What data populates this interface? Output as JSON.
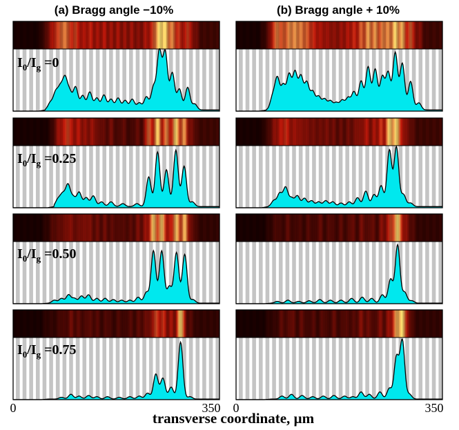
{
  "figure": {
    "column_titles": [
      "(a) Bragg angle −10%",
      "(b) Bragg angle + 10%"
    ],
    "xlabel": "transverse coordinate, µm",
    "x_ticks": [
      "0",
      "350",
      "0",
      "350"
    ],
    "row_labels": [
      {
        "main": "I",
        "sub0": "0",
        "mid": "/I",
        "sub1": "g",
        "value": " =0"
      },
      {
        "main": "I",
        "sub0": "0",
        "mid": "/I",
        "sub1": "g",
        "value": " =0.25"
      },
      {
        "main": "I",
        "sub0": "0",
        "mid": "/I",
        "sub1": "g",
        "value": " =0.50"
      },
      {
        "main": "I",
        "sub0": "0",
        "mid": "/I",
        "sub1": "g",
        "value": " =0.75"
      }
    ]
  },
  "colors": {
    "fill": "#00e8ee",
    "line": "#000000",
    "stripe_gray": "#c4c4c4",
    "stripe_white": "#ffffff",
    "heat_dark": "#1a0000",
    "heat_mid": "#c0180a",
    "heat_bright": "#ffe070"
  },
  "chart_data": {
    "type": "area",
    "x_unit": "µm",
    "xlim": [
      0,
      350
    ],
    "ylim": [
      0,
      1
    ],
    "stripe_count": 31,
    "panels": [
      {
        "column": "a",
        "ratio": "0",
        "baseline": 0.02,
        "onset": 55,
        "peaks": [
          [
            63,
            0.12
          ],
          [
            72,
            0.28
          ],
          [
            80,
            0.34
          ],
          [
            88,
            0.5
          ],
          [
            96,
            0.28
          ],
          [
            106,
            0.38
          ],
          [
            118,
            0.24
          ],
          [
            130,
            0.3
          ],
          [
            142,
            0.2
          ],
          [
            154,
            0.25
          ],
          [
            166,
            0.18
          ],
          [
            178,
            0.2
          ],
          [
            190,
            0.16
          ],
          [
            202,
            0.18
          ],
          [
            214,
            0.12
          ],
          [
            226,
            0.22
          ],
          [
            238,
            0.38
          ],
          [
            248,
            0.98
          ],
          [
            258,
            0.96
          ],
          [
            270,
            0.62
          ],
          [
            282,
            0.35
          ],
          [
            296,
            0.38
          ],
          [
            308,
            0.1
          ]
        ]
      },
      {
        "column": "a",
        "ratio": "0.25",
        "baseline": 0.02,
        "onset": 70,
        "peaks": [
          [
            76,
            0.12
          ],
          [
            84,
            0.2
          ],
          [
            93,
            0.36
          ],
          [
            102,
            0.15
          ],
          [
            112,
            0.24
          ],
          [
            124,
            0.15
          ],
          [
            136,
            0.18
          ],
          [
            150,
            0.08
          ],
          [
            166,
            0.08
          ],
          [
            186,
            0.05
          ],
          [
            210,
            0.05
          ],
          [
            230,
            0.5
          ],
          [
            245,
            0.92
          ],
          [
            260,
            0.62
          ],
          [
            276,
            0.95
          ],
          [
            290,
            0.68
          ],
          [
            304,
            0.08
          ]
        ]
      },
      {
        "column": "a",
        "ratio": "0.50",
        "baseline": 0.01,
        "onset": 60,
        "peaks": [
          [
            70,
            0.05
          ],
          [
            82,
            0.08
          ],
          [
            94,
            0.14
          ],
          [
            104,
            0.08
          ],
          [
            116,
            0.12
          ],
          [
            128,
            0.14
          ],
          [
            142,
            0.08
          ],
          [
            156,
            0.08
          ],
          [
            170,
            0.06
          ],
          [
            184,
            0.05
          ],
          [
            198,
            0.05
          ],
          [
            212,
            0.1
          ],
          [
            226,
            0.18
          ],
          [
            238,
            0.88
          ],
          [
            252,
            0.88
          ],
          [
            265,
            0.28
          ],
          [
            277,
            0.85
          ],
          [
            291,
            0.82
          ],
          [
            305,
            0.06
          ]
        ]
      },
      {
        "column": "a",
        "ratio": "0.75",
        "baseline": 0.01,
        "onset": 60,
        "peaks": [
          [
            82,
            0.03
          ],
          [
            98,
            0.08
          ],
          [
            112,
            0.05
          ],
          [
            128,
            0.06
          ],
          [
            142,
            0.04
          ],
          [
            160,
            0.04
          ],
          [
            180,
            0.03
          ],
          [
            198,
            0.04
          ],
          [
            214,
            0.05
          ],
          [
            228,
            0.1
          ],
          [
            242,
            0.42
          ],
          [
            254,
            0.35
          ],
          [
            268,
            0.2
          ],
          [
            284,
            0.96
          ],
          [
            300,
            0.04
          ]
        ]
      },
      {
        "column": "b",
        "ratio": "0",
        "baseline": 0.02,
        "onset": 52,
        "peaks": [
          [
            62,
            0.22
          ],
          [
            70,
            0.52
          ],
          [
            80,
            0.4
          ],
          [
            90,
            0.58
          ],
          [
            100,
            0.62
          ],
          [
            110,
            0.55
          ],
          [
            120,
            0.45
          ],
          [
            130,
            0.3
          ],
          [
            140,
            0.22
          ],
          [
            150,
            0.18
          ],
          [
            160,
            0.15
          ],
          [
            170,
            0.12
          ],
          [
            180,
            0.16
          ],
          [
            190,
            0.2
          ],
          [
            200,
            0.3
          ],
          [
            212,
            0.48
          ],
          [
            224,
            0.72
          ],
          [
            236,
            0.68
          ],
          [
            248,
            0.55
          ],
          [
            258,
            0.62
          ],
          [
            270,
            0.96
          ],
          [
            282,
            0.78
          ],
          [
            296,
            0.48
          ],
          [
            310,
            0.12
          ]
        ]
      },
      {
        "column": "b",
        "ratio": "0.25",
        "baseline": 0.02,
        "onset": 55,
        "peaks": [
          [
            64,
            0.1
          ],
          [
            74,
            0.22
          ],
          [
            84,
            0.32
          ],
          [
            94,
            0.14
          ],
          [
            104,
            0.18
          ],
          [
            116,
            0.14
          ],
          [
            128,
            0.1
          ],
          [
            140,
            0.08
          ],
          [
            152,
            0.1
          ],
          [
            164,
            0.08
          ],
          [
            178,
            0.06
          ],
          [
            192,
            0.08
          ],
          [
            206,
            0.15
          ],
          [
            220,
            0.26
          ],
          [
            234,
            0.2
          ],
          [
            246,
            0.35
          ],
          [
            260,
            0.95
          ],
          [
            272,
            1.0
          ],
          [
            284,
            0.2
          ],
          [
            296,
            0.06
          ]
        ]
      },
      {
        "column": "b",
        "ratio": "0.50",
        "baseline": 0.01,
        "onset": 60,
        "peaks": [
          [
            70,
            0.03
          ],
          [
            88,
            0.05
          ],
          [
            106,
            0.03
          ],
          [
            124,
            0.04
          ],
          [
            142,
            0.06
          ],
          [
            160,
            0.05
          ],
          [
            178,
            0.05
          ],
          [
            196,
            0.08
          ],
          [
            214,
            0.1
          ],
          [
            230,
            0.08
          ],
          [
            248,
            0.14
          ],
          [
            262,
            0.4
          ],
          [
            274,
            0.98
          ],
          [
            286,
            0.18
          ],
          [
            298,
            0.04
          ]
        ]
      },
      {
        "column": "b",
        "ratio": "0.75",
        "baseline": 0.01,
        "onset": 60,
        "peaks": [
          [
            78,
            0.05
          ],
          [
            94,
            0.08
          ],
          [
            112,
            0.06
          ],
          [
            130,
            0.04
          ],
          [
            148,
            0.05
          ],
          [
            166,
            0.06
          ],
          [
            184,
            0.05
          ],
          [
            198,
            0.04
          ],
          [
            212,
            0.12
          ],
          [
            226,
            0.08
          ],
          [
            244,
            0.12
          ],
          [
            260,
            0.18
          ],
          [
            272,
            0.7
          ],
          [
            282,
            0.98
          ],
          [
            294,
            0.08
          ]
        ]
      }
    ]
  }
}
